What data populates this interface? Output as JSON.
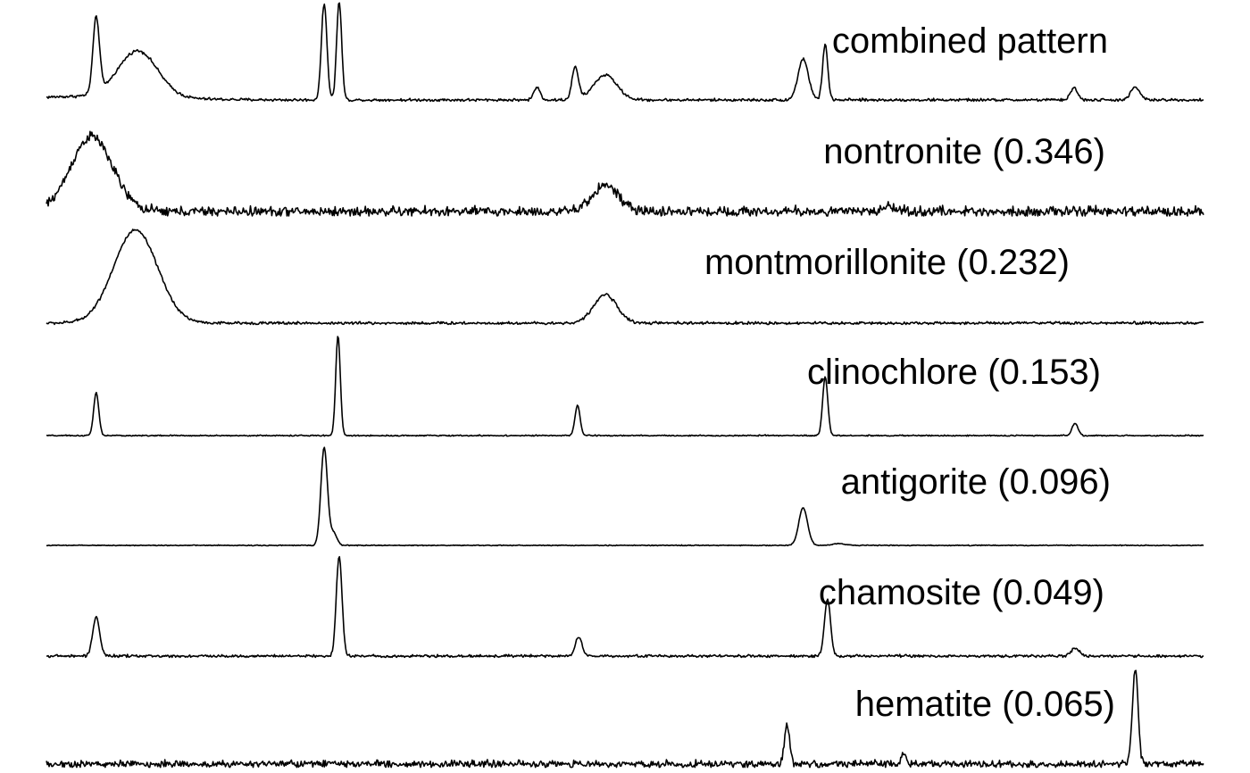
{
  "chart_data": {
    "type": "line",
    "title": "",
    "xlabel": "",
    "ylabel": "",
    "axes_visible": false,
    "grid": false,
    "x_units": "relative position (0-100)",
    "series": [
      {
        "name": "combined pattern",
        "baseline": 0,
        "noise": 1.6,
        "hump": {
          "x": 4.0,
          "h": 4,
          "w": 6
        },
        "peaks": [
          {
            "x": 4.3,
            "h": 84,
            "w": 0.28
          },
          {
            "x": 7.9,
            "h": 52,
            "w": 1.7
          },
          {
            "x": 24.0,
            "h": 108,
            "w": 0.24
          },
          {
            "x": 25.3,
            "h": 110,
            "w": 0.22
          },
          {
            "x": 42.4,
            "h": 14,
            "w": 0.28
          },
          {
            "x": 45.7,
            "h": 36,
            "w": 0.28
          },
          {
            "x": 48.3,
            "h": 28,
            "w": 1.0
          },
          {
            "x": 65.4,
            "h": 46,
            "w": 0.45
          },
          {
            "x": 67.3,
            "h": 63,
            "w": 0.22
          },
          {
            "x": 88.8,
            "h": 14,
            "w": 0.3
          },
          {
            "x": 94.1,
            "h": 14,
            "w": 0.4
          }
        ]
      },
      {
        "name": "nontronite (0.346)",
        "baseline": 0,
        "noise": 5.5,
        "hump": {
          "x": 0,
          "h": 0,
          "w": 1
        },
        "peaks": [
          {
            "x": 3.9,
            "h": 84,
            "w": 1.8
          },
          {
            "x": 48.3,
            "h": 30,
            "w": 1.1
          },
          {
            "x": 72.8,
            "h": 6,
            "w": 0.6
          }
        ]
      },
      {
        "name": "montmorillonite (0.232)",
        "baseline": 0,
        "noise": 1.6,
        "hump": {
          "x": 0,
          "h": 0,
          "w": 1
        },
        "peaks": [
          {
            "x": 7.7,
            "h": 104,
            "w": 1.9
          },
          {
            "x": 48.3,
            "h": 32,
            "w": 1.0
          }
        ]
      },
      {
        "name": "clinochlore (0.153)",
        "baseline": 0,
        "noise": 0.7,
        "hump": {
          "x": 0,
          "h": 0,
          "w": 1
        },
        "peaks": [
          {
            "x": 4.3,
            "h": 48,
            "w": 0.22
          },
          {
            "x": 25.2,
            "h": 112,
            "w": 0.2
          },
          {
            "x": 45.9,
            "h": 34,
            "w": 0.22
          },
          {
            "x": 67.3,
            "h": 66,
            "w": 0.22
          },
          {
            "x": 88.9,
            "h": 14,
            "w": 0.25
          }
        ]
      },
      {
        "name": "antigorite (0.096)",
        "baseline": 0,
        "noise": 0.5,
        "hump": {
          "x": 0,
          "h": 0,
          "w": 1
        },
        "peaks": [
          {
            "x": 24.0,
            "h": 110,
            "w": 0.28
          },
          {
            "x": 24.8,
            "h": 14,
            "w": 0.3
          },
          {
            "x": 65.4,
            "h": 42,
            "w": 0.38
          },
          {
            "x": 68.5,
            "h": 2,
            "w": 0.6
          }
        ]
      },
      {
        "name": "chamosite (0.049)",
        "baseline": 0,
        "noise": 1.5,
        "hump": {
          "x": 0,
          "h": 0,
          "w": 1
        },
        "peaks": [
          {
            "x": 4.3,
            "h": 44,
            "w": 0.3
          },
          {
            "x": 25.3,
            "h": 112,
            "w": 0.25
          },
          {
            "x": 46.0,
            "h": 22,
            "w": 0.28
          },
          {
            "x": 67.5,
            "h": 64,
            "w": 0.26
          },
          {
            "x": 88.9,
            "h": 9,
            "w": 0.35
          }
        ]
      },
      {
        "name": "hematite (0.065)",
        "baseline": 0,
        "noise": 4.0,
        "hump": {
          "x": 0,
          "h": 0,
          "w": 1
        },
        "peaks": [
          {
            "x": 64.0,
            "h": 44,
            "w": 0.22
          },
          {
            "x": 74.1,
            "h": 12,
            "w": 0.2
          },
          {
            "x": 94.1,
            "h": 108,
            "w": 0.24
          }
        ]
      }
    ]
  }
}
